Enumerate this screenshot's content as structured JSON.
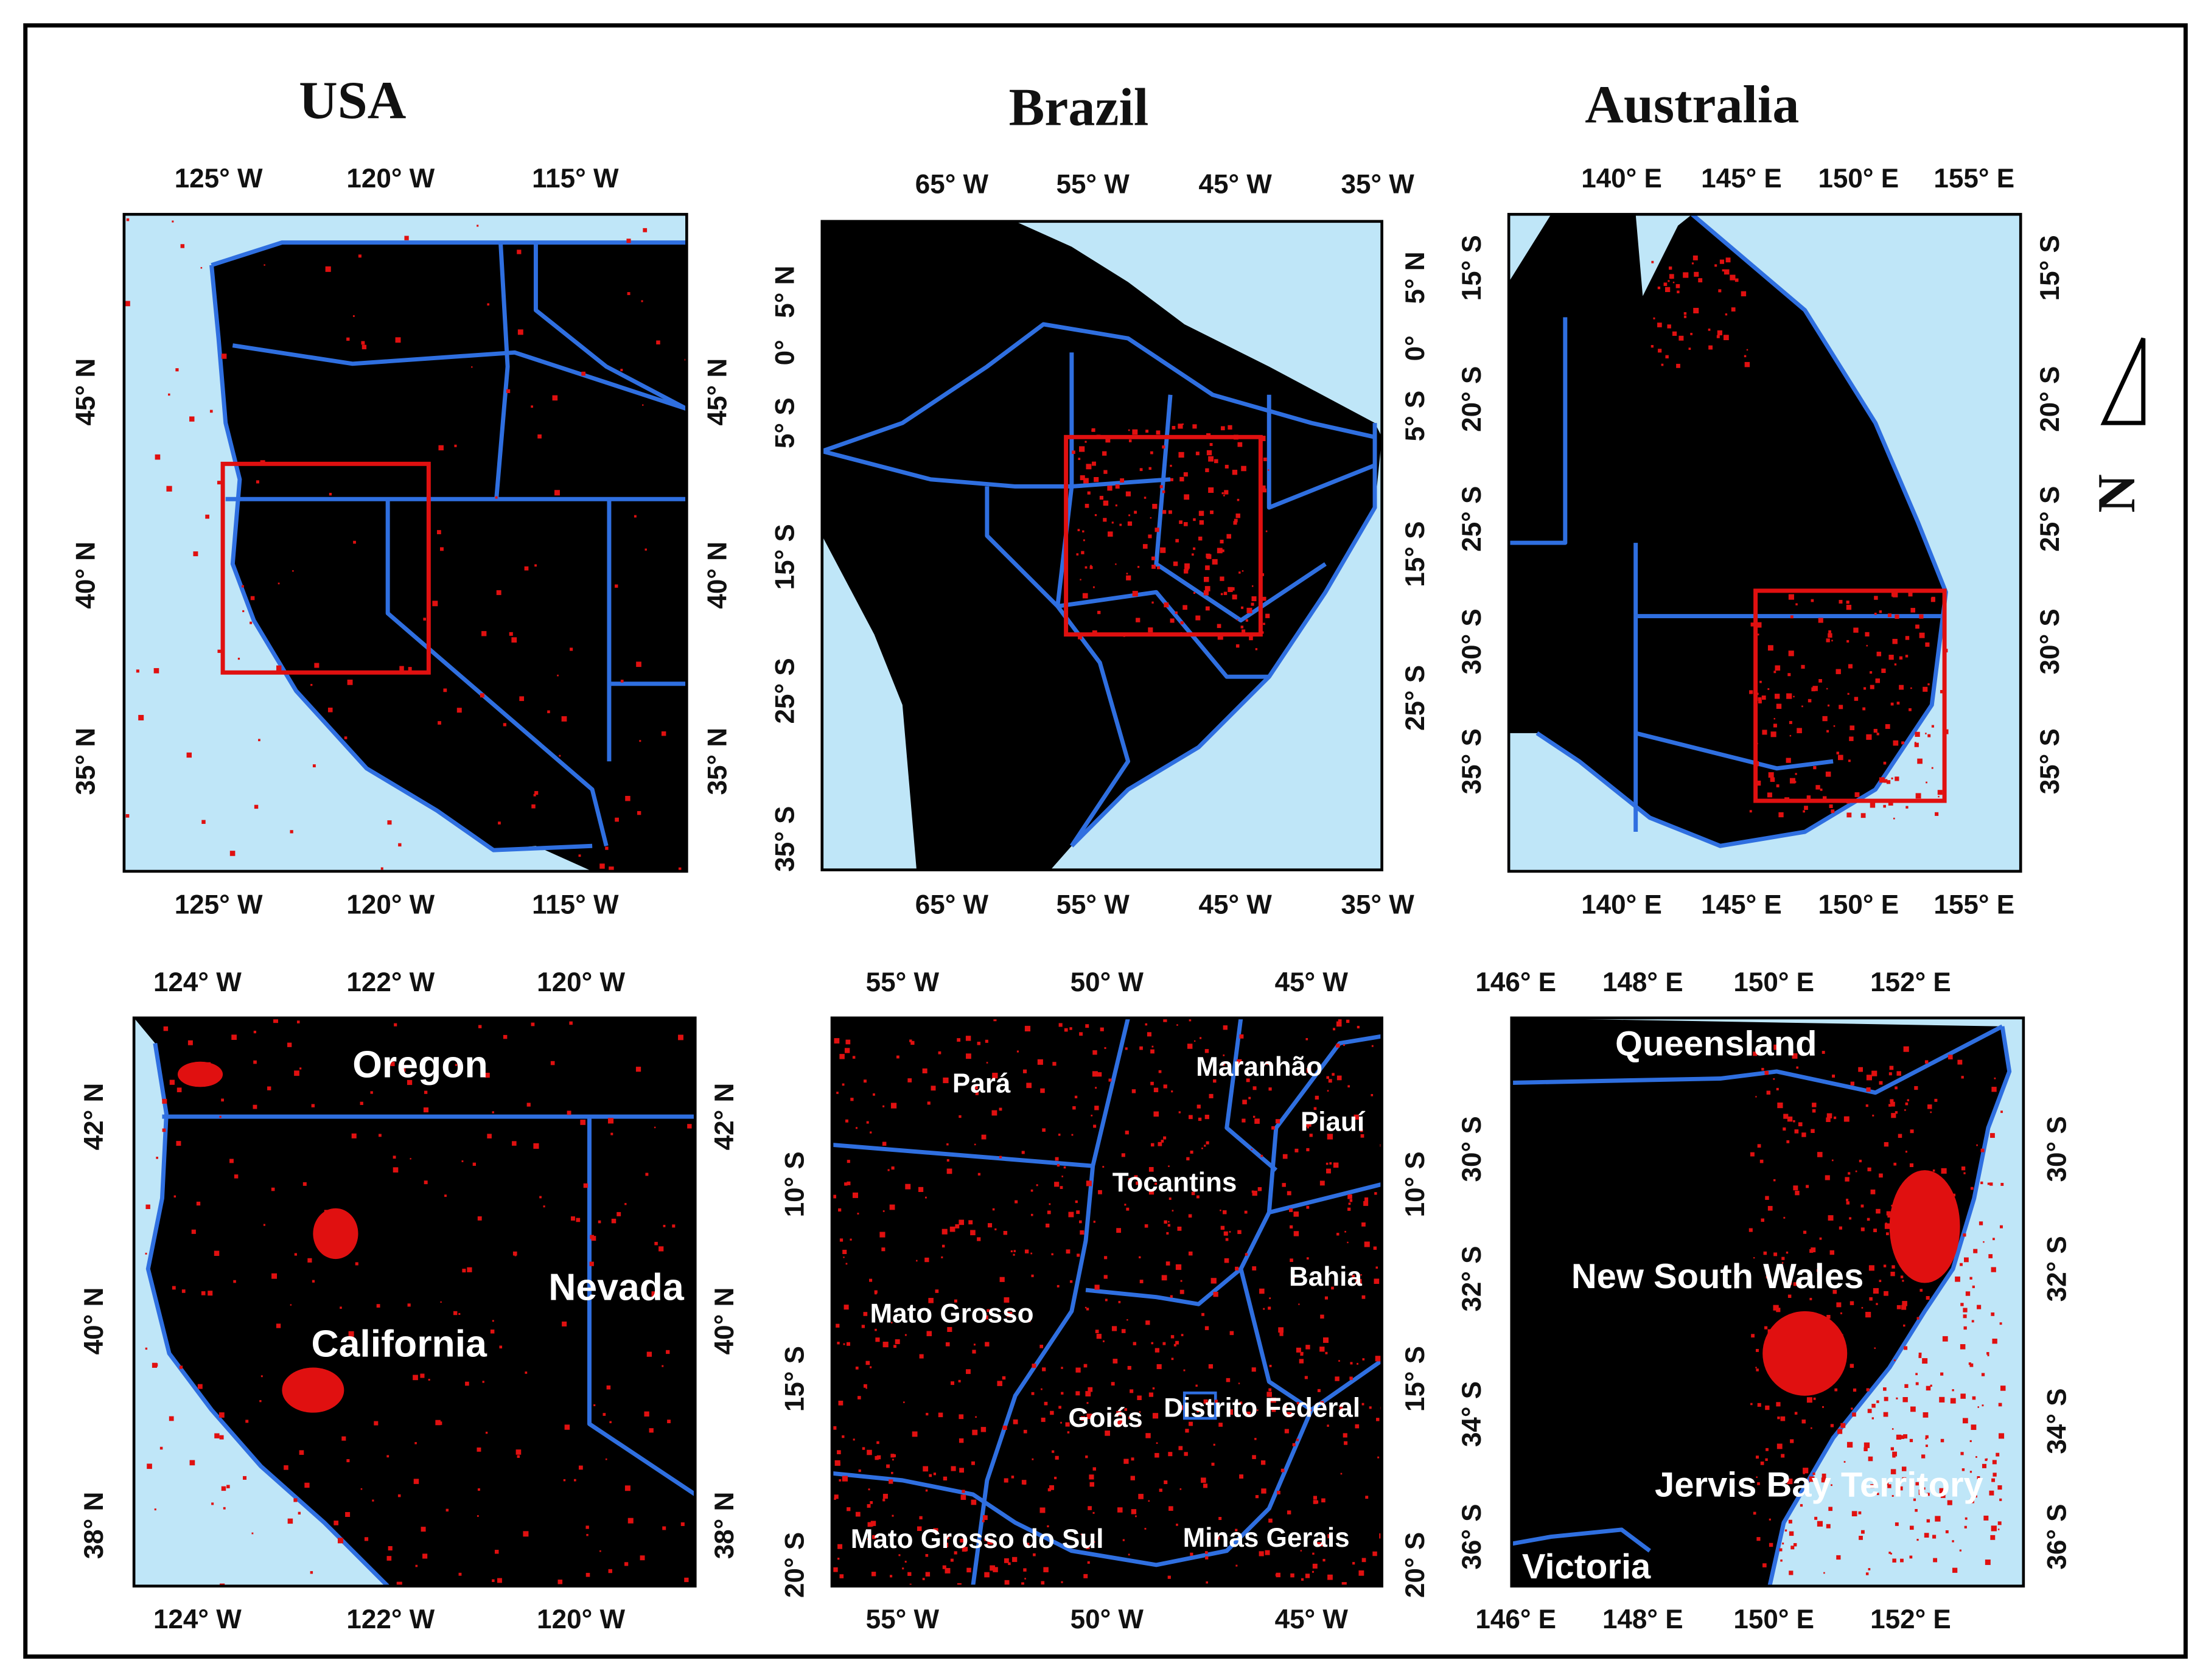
{
  "panels": [
    {
      "title": "USA",
      "top": [
        "125° W",
        "120° W",
        "115° W"
      ],
      "bottom": [
        "125° W",
        "120° W",
        "115° W"
      ],
      "left": [
        "45° N",
        "40° N",
        "35° N"
      ],
      "right": [
        "45° N",
        "40° N",
        "35° N"
      ]
    },
    {
      "title": "Brazil",
      "top": [
        "65° W",
        "55° W",
        "45° W",
        "35° W"
      ],
      "bottom": [
        "65° W",
        "55° W",
        "45° W",
        "35° W"
      ],
      "left": [
        "5° N",
        "0°",
        "5° S",
        "15° S",
        "25° S",
        "35° S"
      ],
      "right": [
        "5° N",
        "0°",
        "5° S",
        "15° S",
        "25° S"
      ]
    },
    {
      "title": "Australia",
      "top": [
        "140° E",
        "145° E",
        "150° E",
        "155° E"
      ],
      "bottom": [
        "140° E",
        "145° E",
        "150° E",
        "155° E"
      ],
      "left": [
        "15° S",
        "20° S",
        "25° S",
        "30° S",
        "35° S"
      ],
      "right": [
        "15° S",
        "20° S",
        "25° S",
        "30° S",
        "35° S"
      ]
    },
    {
      "top": [
        "124° W",
        "122° W",
        "120° W"
      ],
      "bottom": [
        "124° W",
        "122° W",
        "120° W"
      ],
      "left": [
        "42° N",
        "40° N",
        "38° N"
      ],
      "right": [
        "42° N",
        "40° N",
        "38° N"
      ],
      "labels": [
        "Oregon",
        "California",
        "Nevada"
      ]
    },
    {
      "top": [
        "55° W",
        "50° W",
        "45° W"
      ],
      "bottom": [
        "55° W",
        "50° W",
        "45° W"
      ],
      "left": [
        "10° S",
        "15° S",
        "20° S"
      ],
      "right": [
        "10° S",
        "15° S",
        "20° S"
      ],
      "labels": [
        "Pará",
        "Maranhão",
        "Piauí",
        "Tocantins",
        "Bahia",
        "Mato Grosso",
        "Goiás",
        "Distrito Federal",
        "Mato Grosso do Sul",
        "Minas Gerais"
      ]
    },
    {
      "top": [
        "146° E",
        "148° E",
        "150° E",
        "152° E"
      ],
      "bottom": [
        "146° E",
        "148° E",
        "150° E",
        "152° E"
      ],
      "left": [
        "30° S",
        "32° S",
        "34° S",
        "36° S"
      ],
      "right": [
        "30° S",
        "32° S",
        "34° S",
        "36° S"
      ],
      "labels": [
        "Queensland",
        "New South Wales",
        "Jervis Bay Territory",
        "Victoria"
      ]
    }
  ],
  "north_label": "N"
}
